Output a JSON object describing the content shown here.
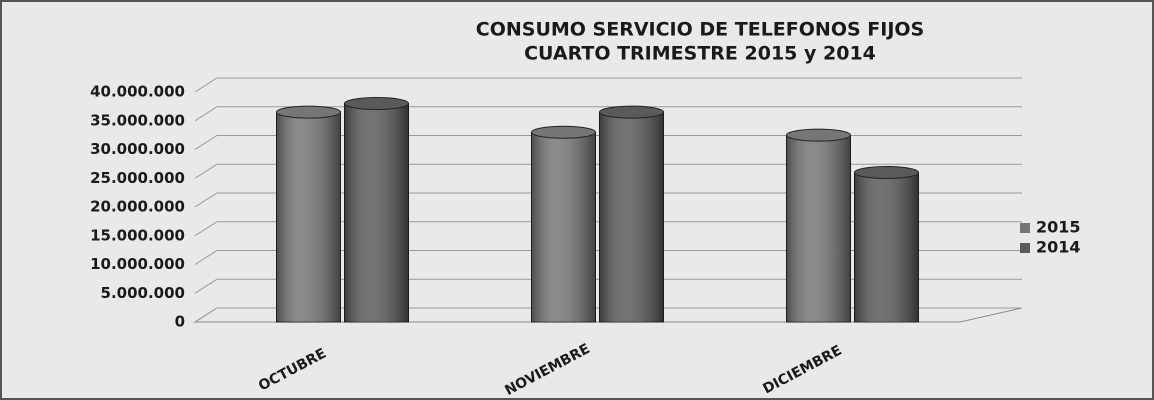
{
  "chart_data": {
    "type": "bar",
    "title": "CONSUMO SERVICIO DE TELEFONOS FIJOS",
    "subtitle": "CUARTO TRIMESTRE 2015 y 2014",
    "categories": [
      "OCTUBRE",
      "NOVIEMBRE",
      "DICIEMBRE"
    ],
    "series": [
      {
        "name": "2015",
        "color": "#767676",
        "values": [
          36500000,
          33000000,
          32500000
        ]
      },
      {
        "name": "2014",
        "color": "#5a5a5a",
        "values": [
          38000000,
          36500000,
          26000000
        ]
      }
    ],
    "ylim": [
      0,
      40000000
    ],
    "yticks": [
      0,
      {
        "value": 5000000,
        "label": "5.000.000"
      },
      {
        "value": 10000000,
        "label": "10.000.000"
      },
      {
        "value": 15000000,
        "label": "15.000.000"
      },
      {
        "value": 20000000,
        "label": "20.000.000"
      },
      {
        "value": 25000000,
        "label": "25.000.000"
      },
      {
        "value": 30000000,
        "label": "30.000.000"
      },
      {
        "value": 35000000,
        "label": "35.000.000"
      },
      {
        "value": 40000000,
        "label": "40.000.000"
      }
    ],
    "grid": true,
    "legend": "right"
  }
}
